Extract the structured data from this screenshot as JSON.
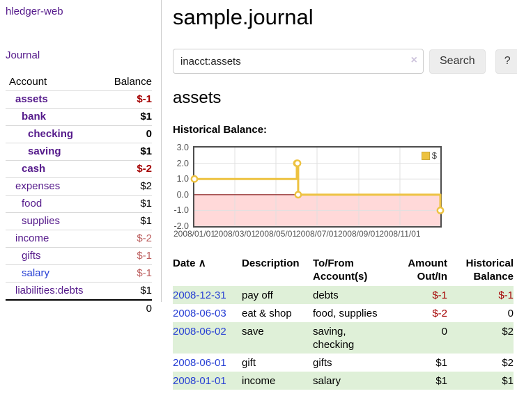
{
  "sidebar": {
    "title": "hledger-web",
    "journal_label": "Journal",
    "accounts": {
      "header_account": "Account",
      "header_balance": "Balance",
      "rows": [
        {
          "account": "assets",
          "balance": "$-1"
        },
        {
          "account": "bank",
          "balance": "$1"
        },
        {
          "account": "checking",
          "balance": "0"
        },
        {
          "account": "saving",
          "balance": "$1"
        },
        {
          "account": "cash",
          "balance": "$-2"
        },
        {
          "account": "expenses",
          "balance": "$2"
        },
        {
          "account": "food",
          "balance": "$1"
        },
        {
          "account": "supplies",
          "balance": "$1"
        },
        {
          "account": "income",
          "balance": "$-2"
        },
        {
          "account": "gifts",
          "balance": "$-1"
        },
        {
          "account": "salary",
          "balance": "$-1"
        },
        {
          "account": "liabilities:debts",
          "balance": "$1"
        }
      ],
      "total": "0"
    }
  },
  "main": {
    "title": "sample.journal",
    "search": {
      "value": "inacct:assets",
      "clear_icon": "×",
      "button_label": "Search",
      "help_label": "?"
    },
    "account_heading": "assets",
    "chart_label": "Historical Balance:"
  },
  "chart_data": {
    "type": "line",
    "step": true,
    "title": "Historical Balance",
    "legend": "$",
    "x_range": [
      "2008-01-01",
      "2008-12-31"
    ],
    "ylim": [
      -2,
      3
    ],
    "yticks": [
      "3.0",
      "2.0",
      "1.0",
      "0.0",
      "-1.0",
      "-2.0"
    ],
    "xticks": [
      "2008/01/01",
      "2008/03/01",
      "2008/05/01",
      "2008/07/01",
      "2008/09/01",
      "2008/11/01"
    ],
    "series": [
      {
        "name": "$",
        "points": [
          [
            "2008-01-01",
            1
          ],
          [
            "2008-06-01",
            2
          ],
          [
            "2008-06-02",
            2
          ],
          [
            "2008-06-03",
            0
          ],
          [
            "2008-12-31",
            -1
          ]
        ]
      }
    ],
    "grid": true,
    "legend_position": "top-right",
    "colors": {
      "line": "#edc240",
      "negative_region": "#ffd9d9",
      "zero_line": "#8b1a1a",
      "gridline": "#e0e0e0"
    }
  },
  "register": {
    "headers": {
      "date": "Date",
      "sort_icon": "∧",
      "description": "Description",
      "to_from": "To/From Account(s)",
      "amount": "Amount Out/In",
      "balance": "Historical Balance"
    },
    "rows": [
      {
        "date": "2008-12-31",
        "description": "pay off",
        "to_from": "debts",
        "amount": "$-1",
        "balance": "$-1"
      },
      {
        "date": "2008-06-03",
        "description": "eat & shop",
        "to_from": "food, supplies",
        "amount": "$-2",
        "balance": "0"
      },
      {
        "date": "2008-06-02",
        "description": "save",
        "to_from": "saving, checking",
        "amount": "0",
        "balance": "$2"
      },
      {
        "date": "2008-06-01",
        "description": "gift",
        "to_from": "gifts",
        "amount": "$1",
        "balance": "$2"
      },
      {
        "date": "2008-01-01",
        "description": "income",
        "to_from": "salary",
        "amount": "$1",
        "balance": "$1"
      }
    ]
  }
}
